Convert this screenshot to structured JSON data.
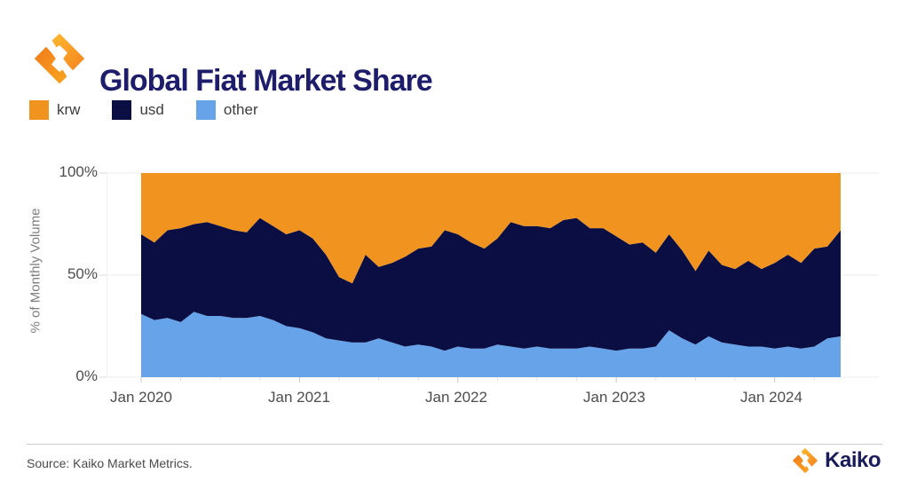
{
  "header": {
    "title": "Global Fiat Market Share",
    "logo_icon": "kaiko-mark-icon"
  },
  "legend": [
    {
      "label": "krw",
      "color": "#F0941F"
    },
    {
      "label": "usd",
      "color": "#0A0E42"
    },
    {
      "label": "other",
      "color": "#67A3E8"
    }
  ],
  "palette": {
    "krw": "#F0941F",
    "usd": "#0A0E42",
    "other": "#67A3E8",
    "title_navy": "#1D1D6B"
  },
  "chart_data": {
    "type": "area",
    "stacked": true,
    "normalized_to_100": true,
    "title": "Global Fiat Market Share",
    "xlabel": "",
    "ylabel": "% of Monthly Volume",
    "ylim": [
      0,
      100
    ],
    "ytick_labels": [
      "0%",
      "50%",
      "100%"
    ],
    "xtick_labels": [
      "Jan 2020",
      "Jan 2021",
      "Jan 2022",
      "Jan 2023",
      "Jan 2024"
    ],
    "grid": "horizontal",
    "legend_position": "top-left",
    "x": [
      "2020-01",
      "2020-02",
      "2020-03",
      "2020-04",
      "2020-05",
      "2020-06",
      "2020-07",
      "2020-08",
      "2020-09",
      "2020-10",
      "2020-11",
      "2020-12",
      "2021-01",
      "2021-02",
      "2021-03",
      "2021-04",
      "2021-05",
      "2021-06",
      "2021-07",
      "2021-08",
      "2021-09",
      "2021-10",
      "2021-11",
      "2021-12",
      "2022-01",
      "2022-02",
      "2022-03",
      "2022-04",
      "2022-05",
      "2022-06",
      "2022-07",
      "2022-08",
      "2022-09",
      "2022-10",
      "2022-11",
      "2022-12",
      "2023-01",
      "2023-02",
      "2023-03",
      "2023-04",
      "2023-05",
      "2023-06",
      "2023-07",
      "2023-08",
      "2023-09",
      "2023-10",
      "2023-11",
      "2023-12",
      "2024-01",
      "2024-02",
      "2024-03",
      "2024-04",
      "2024-05",
      "2024-06"
    ],
    "series": [
      {
        "name": "other",
        "color": "#67A3E8",
        "values": [
          31,
          28,
          29,
          27,
          32,
          30,
          30,
          29,
          29,
          30,
          28,
          25,
          24,
          22,
          19,
          18,
          17,
          17,
          19,
          17,
          15,
          16,
          15,
          13,
          15,
          14,
          14,
          16,
          15,
          14,
          15,
          14,
          14,
          14,
          15,
          14,
          13,
          14,
          14,
          15,
          23,
          19,
          16,
          20,
          17,
          16,
          15,
          15,
          14,
          15,
          14,
          15,
          19,
          20
        ]
      },
      {
        "name": "usd",
        "color": "#0A0E42",
        "values": [
          39,
          38,
          43,
          46,
          43,
          46,
          44,
          43,
          42,
          48,
          46,
          45,
          48,
          46,
          41,
          31,
          29,
          43,
          35,
          39,
          44,
          47,
          49,
          59,
          55,
          52,
          49,
          52,
          61,
          60,
          59,
          59,
          63,
          64,
          58,
          59,
          56,
          51,
          52,
          46,
          47,
          43,
          36,
          42,
          38,
          37,
          42,
          38,
          42,
          45,
          42,
          48,
          45,
          52
        ]
      },
      {
        "name": "krw",
        "color": "#F0941F",
        "values": [
          30,
          34,
          28,
          27,
          25,
          24,
          26,
          28,
          29,
          22,
          26,
          30,
          28,
          32,
          40,
          51,
          54,
          40,
          46,
          44,
          41,
          37,
          36,
          28,
          30,
          34,
          37,
          32,
          24,
          26,
          26,
          27,
          23,
          22,
          27,
          27,
          31,
          35,
          34,
          39,
          30,
          38,
          48,
          38,
          45,
          47,
          43,
          47,
          44,
          40,
          44,
          37,
          36,
          28
        ]
      }
    ]
  },
  "footer": {
    "source": "Source: Kaiko Market Metrics.",
    "brand": "Kaiko",
    "brand_icon": "kaiko-mark-icon"
  }
}
